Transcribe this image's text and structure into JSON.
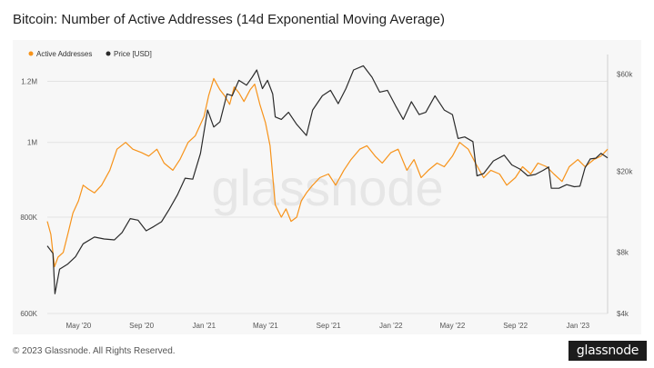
{
  "page": {
    "title": "Bitcoin: Number of Active Addresses (14d Exponential Moving Average)",
    "copyright": "© 2023 Glassnode. All Rights Reserved.",
    "watermark": "glassnode",
    "brand": "glassnode"
  },
  "colors": {
    "active": "#f7931a",
    "price": "#2b2b2b",
    "grid": "#e3e3e3",
    "panel": "#f7f7f7"
  },
  "chart_data": {
    "type": "line",
    "title": "Bitcoin: Number of Active Addresses (14d Exponential Moving Average)",
    "legend": {
      "placement": "top-left"
    },
    "grid": true,
    "x_ticks": [
      "May '20",
      "Sep '20",
      "Jan '21",
      "May '21",
      "Sep '21",
      "Jan '22",
      "May '22",
      "Sep '22",
      "Jan '23"
    ],
    "xlim": [
      "2020-03-01",
      "2023-02-28"
    ],
    "y_left": {
      "label": "Active Addresses",
      "scale": "log",
      "ticks": [
        "600K",
        "800K",
        "1M",
        "1.2M"
      ],
      "tick_values": [
        600000,
        800000,
        1000000,
        1200000
      ],
      "lim": [
        600000,
        1300000
      ]
    },
    "y_right": {
      "label": "Price [USD]",
      "scale": "log",
      "ticks": [
        "$4k",
        "$8k",
        "$20k",
        "$60k"
      ],
      "tick_values": [
        4000,
        8000,
        20000,
        60000
      ],
      "lim": [
        4000,
        75000
      ]
    },
    "series": [
      {
        "name": "Active Addresses",
        "axis": "left",
        "x": [
          "2020-03-01",
          "2020-03-08",
          "2020-03-15",
          "2020-03-22",
          "2020-04-01",
          "2020-04-10",
          "2020-04-20",
          "2020-05-01",
          "2020-05-10",
          "2020-05-20",
          "2020-06-01",
          "2020-06-15",
          "2020-07-01",
          "2020-07-15",
          "2020-08-01",
          "2020-08-15",
          "2020-09-01",
          "2020-09-15",
          "2020-10-01",
          "2020-10-15",
          "2020-11-01",
          "2020-11-15",
          "2020-12-01",
          "2020-12-15",
          "2021-01-01",
          "2021-01-10",
          "2021-01-20",
          "2021-02-01",
          "2021-02-10",
          "2021-02-20",
          "2021-03-01",
          "2021-03-10",
          "2021-03-20",
          "2021-04-01",
          "2021-04-10",
          "2021-04-20",
          "2021-05-01",
          "2021-05-10",
          "2021-05-20",
          "2021-06-01",
          "2021-06-10",
          "2021-06-20",
          "2021-07-01",
          "2021-07-10",
          "2021-07-20",
          "2021-08-01",
          "2021-08-15",
          "2021-09-01",
          "2021-09-15",
          "2021-10-01",
          "2021-10-15",
          "2021-11-01",
          "2021-11-15",
          "2021-12-01",
          "2021-12-15",
          "2022-01-01",
          "2022-01-15",
          "2022-02-01",
          "2022-02-15",
          "2022-03-01",
          "2022-03-15",
          "2022-04-01",
          "2022-04-15",
          "2022-05-01",
          "2022-05-15",
          "2022-06-01",
          "2022-06-15",
          "2022-07-01",
          "2022-07-15",
          "2022-08-01",
          "2022-08-15",
          "2022-09-01",
          "2022-09-15",
          "2022-10-01",
          "2022-10-15",
          "2022-11-01",
          "2022-11-15",
          "2022-12-01",
          "2022-12-15",
          "2023-01-01",
          "2023-01-15",
          "2023-02-01",
          "2023-02-15",
          "2023-02-28"
        ],
        "values": [
          790000,
          760000,
          690000,
          710000,
          720000,
          760000,
          810000,
          840000,
          880000,
          870000,
          860000,
          880000,
          920000,
          980000,
          1000000,
          980000,
          970000,
          960000,
          980000,
          940000,
          920000,
          950000,
          1000000,
          1020000,
          1080000,
          1150000,
          1210000,
          1170000,
          1150000,
          1120000,
          1180000,
          1160000,
          1130000,
          1170000,
          1190000,
          1120000,
          1060000,
          990000,
          830000,
          800000,
          820000,
          790000,
          800000,
          840000,
          860000,
          880000,
          900000,
          910000,
          880000,
          920000,
          950000,
          980000,
          990000,
          960000,
          940000,
          970000,
          980000,
          920000,
          950000,
          900000,
          920000,
          940000,
          930000,
          960000,
          1000000,
          980000,
          940000,
          900000,
          920000,
          910000,
          880000,
          900000,
          930000,
          910000,
          940000,
          930000,
          910000,
          890000,
          930000,
          950000,
          930000,
          950000,
          960000,
          980000
        ]
      },
      {
        "name": "Price [USD]",
        "axis": "right",
        "x": [
          "2020-03-01",
          "2020-03-12",
          "2020-03-16",
          "2020-03-25",
          "2020-04-10",
          "2020-04-25",
          "2020-05-10",
          "2020-06-01",
          "2020-06-20",
          "2020-07-10",
          "2020-07-25",
          "2020-08-10",
          "2020-08-25",
          "2020-09-10",
          "2020-09-25",
          "2020-10-10",
          "2020-10-25",
          "2020-11-10",
          "2020-11-25",
          "2020-12-10",
          "2020-12-25",
          "2021-01-08",
          "2021-01-20",
          "2021-02-01",
          "2021-02-15",
          "2021-02-25",
          "2021-03-10",
          "2021-03-25",
          "2021-04-05",
          "2021-04-14",
          "2021-04-25",
          "2021-05-05",
          "2021-05-15",
          "2021-05-20",
          "2021-06-01",
          "2021-06-15",
          "2021-07-01",
          "2021-07-20",
          "2021-08-01",
          "2021-08-20",
          "2021-09-05",
          "2021-09-20",
          "2021-10-05",
          "2021-10-20",
          "2021-11-08",
          "2021-11-25",
          "2021-12-10",
          "2021-12-25",
          "2022-01-10",
          "2022-01-25",
          "2022-02-10",
          "2022-02-25",
          "2022-03-10",
          "2022-03-28",
          "2022-04-15",
          "2022-05-01",
          "2022-05-12",
          "2022-05-25",
          "2022-06-10",
          "2022-06-18",
          "2022-07-01",
          "2022-07-20",
          "2022-08-10",
          "2022-08-25",
          "2022-09-10",
          "2022-09-25",
          "2022-10-10",
          "2022-10-25",
          "2022-11-05",
          "2022-11-10",
          "2022-11-25",
          "2022-12-10",
          "2022-12-25",
          "2023-01-05",
          "2023-01-15",
          "2023-01-25",
          "2023-02-05",
          "2023-02-15",
          "2023-02-28"
        ],
        "values": [
          8600,
          7900,
          5000,
          6600,
          7000,
          7600,
          8800,
          9500,
          9300,
          9200,
          10000,
          11700,
          11500,
          10200,
          10700,
          11300,
          13000,
          15300,
          18500,
          18300,
          24500,
          40000,
          33000,
          35000,
          48000,
          47000,
          56000,
          53000,
          58000,
          63000,
          51000,
          56000,
          48000,
          37000,
          36000,
          39000,
          34000,
          30000,
          40000,
          47000,
          50000,
          43000,
          51000,
          63000,
          66000,
          58000,
          49000,
          50000,
          42000,
          36000,
          44000,
          38000,
          39000,
          47000,
          40000,
          38000,
          29000,
          29500,
          28000,
          19000,
          19500,
          22500,
          24000,
          21500,
          20500,
          19000,
          19300,
          20200,
          21000,
          16500,
          16500,
          17200,
          16800,
          16900,
          20800,
          23000,
          23200,
          24500,
          23300
        ]
      }
    ]
  }
}
